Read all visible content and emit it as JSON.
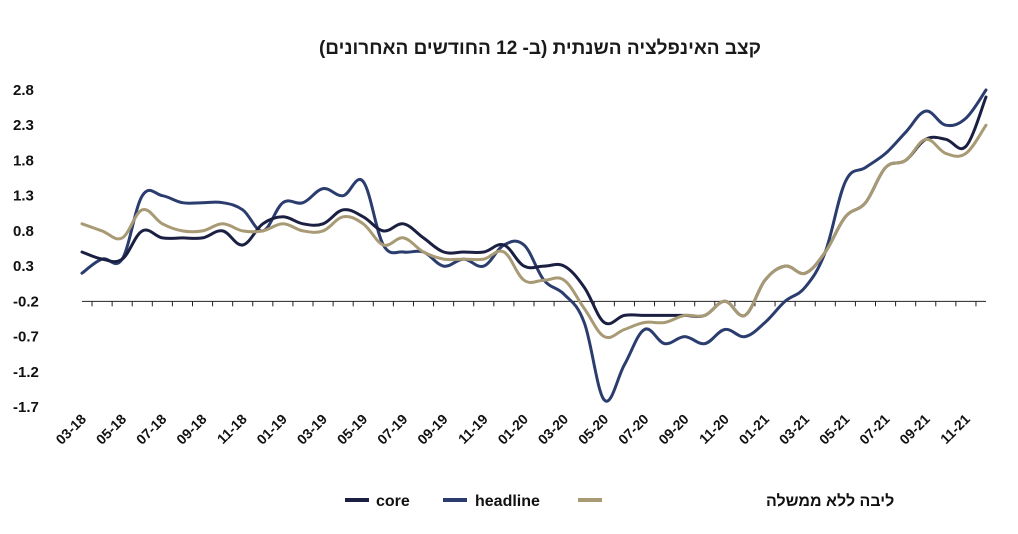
{
  "chart_data": {
    "type": "line",
    "title": "קצב האינפלציה השנתית (ב- 12 החודשים האחרונים)",
    "xlabel": "",
    "ylabel": "",
    "ylim": [
      -1.7,
      2.8
    ],
    "yticks": [
      "2.8",
      "2.3",
      "1.8",
      "1.3",
      "0.8",
      "0.3",
      "-0.2",
      "-0.7",
      "-1.2",
      "-1.7"
    ],
    "ytick_values": [
      2.8,
      2.3,
      1.8,
      1.3,
      0.8,
      0.3,
      -0.2,
      -0.7,
      -1.2,
      -1.7
    ],
    "baseline": -0.2,
    "x": [
      "03-18",
      "04-18",
      "05-18",
      "06-18",
      "07-18",
      "08-18",
      "09-18",
      "10-18",
      "11-18",
      "12-18",
      "01-19",
      "02-19",
      "03-19",
      "04-19",
      "05-19",
      "06-19",
      "07-19",
      "08-19",
      "09-19",
      "10-19",
      "11-19",
      "12-19",
      "01-20",
      "02-20",
      "03-20",
      "04-20",
      "05-20",
      "06-20",
      "07-20",
      "08-20",
      "09-20",
      "10-20",
      "11-20",
      "12-20",
      "01-21",
      "02-21",
      "03-21",
      "04-21",
      "05-21",
      "06-21",
      "07-21",
      "08-21",
      "09-21",
      "10-21",
      "11-21",
      "12-21"
    ],
    "xtick_labels": [
      "03-18",
      "05-18",
      "07-18",
      "09-18",
      "11-18",
      "01-19",
      "03-19",
      "05-19",
      "07-19",
      "09-19",
      "11-19",
      "01-20",
      "03-20",
      "05-20",
      "07-20",
      "09-20",
      "11-20",
      "01-21",
      "03-21",
      "05-21",
      "07-21",
      "09-21",
      "11-21"
    ],
    "series": [
      {
        "name": "core",
        "color": "#1b2042",
        "values": [
          0.5,
          0.4,
          0.4,
          0.8,
          0.7,
          0.7,
          0.7,
          0.8,
          0.6,
          0.9,
          1.0,
          0.9,
          0.9,
          1.1,
          1.0,
          0.8,
          0.9,
          0.7,
          0.5,
          0.5,
          0.5,
          0.6,
          0.3,
          0.3,
          0.3,
          0.0,
          -0.5,
          -0.4,
          -0.4,
          -0.4,
          -0.4,
          -0.4,
          -0.2,
          -0.4,
          0.1,
          0.3,
          0.2,
          0.5,
          1.0,
          1.2,
          1.7,
          1.8,
          2.1,
          2.1,
          2.0,
          2.7
        ]
      },
      {
        "name": "headline",
        "color": "#2b3d6e",
        "values": [
          0.2,
          0.4,
          0.4,
          1.3,
          1.3,
          1.2,
          1.2,
          1.2,
          1.1,
          0.8,
          1.2,
          1.2,
          1.4,
          1.3,
          1.5,
          0.6,
          0.5,
          0.5,
          0.3,
          0.4,
          0.3,
          0.6,
          0.6,
          0.1,
          -0.1,
          -0.5,
          -1.6,
          -1.1,
          -0.6,
          -0.8,
          -0.7,
          -0.8,
          -0.6,
          -0.7,
          -0.5,
          -0.2,
          0.0,
          0.5,
          1.5,
          1.7,
          1.9,
          2.2,
          2.5,
          2.3,
          2.4,
          2.8
        ]
      },
      {
        "name": "ליבה ללא ממשלה",
        "color": "#a89a74",
        "values": [
          0.9,
          0.8,
          0.7,
          1.1,
          0.9,
          0.8,
          0.8,
          0.9,
          0.8,
          0.8,
          0.9,
          0.8,
          0.8,
          1.0,
          0.9,
          0.6,
          0.7,
          0.5,
          0.4,
          0.4,
          0.4,
          0.5,
          0.1,
          0.1,
          0.1,
          -0.3,
          -0.7,
          -0.6,
          -0.5,
          -0.5,
          -0.4,
          -0.4,
          -0.2,
          -0.4,
          0.1,
          0.3,
          0.2,
          0.5,
          1.0,
          1.2,
          1.7,
          1.8,
          2.1,
          1.9,
          1.9,
          2.3
        ]
      }
    ],
    "legend": {
      "position": "bottom",
      "entries": [
        "core",
        "headline",
        "ליבה ללא ממשלה"
      ]
    }
  }
}
